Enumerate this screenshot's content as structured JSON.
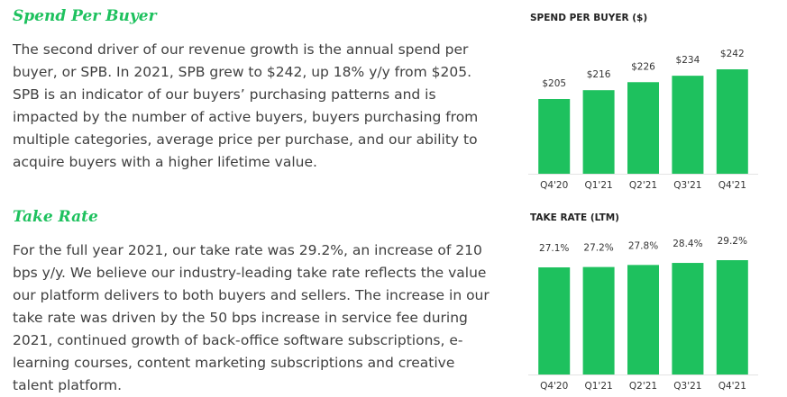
{
  "spb_section": {
    "title": "Spend Per Buyer",
    "body": "The second driver of our revenue growth is the annual spend per buyer, or SPB. In 2021, SPB grew to $242, up 18% y/y from $205. SPB is an indicator of our buyers’ purchasing patterns and is impacted by the number of active buyers, buyers purchasing from multiple categories, average price per purchase, and our ability to acquire buyers with a higher lifetime value."
  },
  "take_section": {
    "title": "Take Rate",
    "body": "For the full year 2021, our take rate was 29.2%, an increase of 210 bps y/y. We believe our industry-leading take rate reflects the value our platform delivers to both buyers and sellers. The increase in our take rate was driven by the 50 bps increase in service fee during 2021, continued growth of back-office software subscriptions, e-learning courses, content marketing subscriptions and creative talent platform."
  },
  "colors": {
    "accent": "#1ec15e",
    "bar": "#1ec15e"
  },
  "chart_data": [
    {
      "type": "bar",
      "title": "SPEND PER BUYER ($)",
      "categories": [
        "Q4'20",
        "Q1'21",
        "Q2'21",
        "Q3'21",
        "Q4'21"
      ],
      "values": [
        205,
        216,
        226,
        234,
        242
      ],
      "data_labels": [
        "$205",
        "$216",
        "$226",
        "$234",
        "$242"
      ],
      "xlabel": "",
      "ylabel": "",
      "grid": false,
      "legend": "none"
    },
    {
      "type": "bar",
      "title": "TAKE RATE (LTM)",
      "categories": [
        "Q4'20",
        "Q1'21",
        "Q2'21",
        "Q3'21",
        "Q4'21"
      ],
      "values": [
        27.1,
        27.2,
        27.8,
        28.4,
        29.2
      ],
      "data_labels": [
        "27.1%",
        "27.2%",
        "27.8%",
        "28.4%",
        "29.2%"
      ],
      "xlabel": "",
      "ylabel": "",
      "grid": false,
      "legend": "none"
    }
  ]
}
